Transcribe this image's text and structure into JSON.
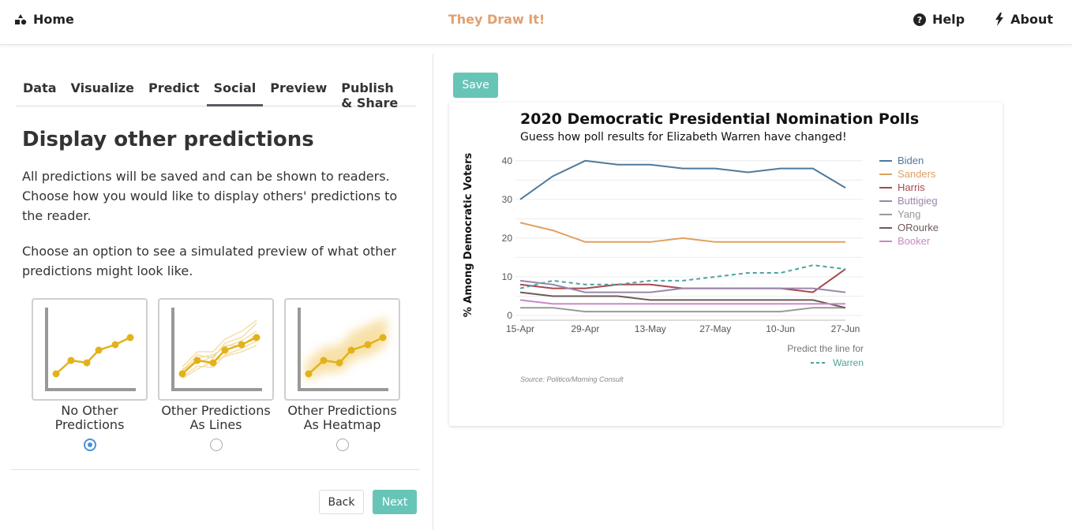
{
  "nav": {
    "home_label": "Home",
    "brand": "They Draw It!",
    "help_label": "Help",
    "about_label": "About",
    "home_icon": "shapes-icon",
    "help_icon": "question-circle-icon",
    "about_icon": "bolt-icon"
  },
  "tabs": [
    {
      "label": "Data",
      "active": false
    },
    {
      "label": "Visualize",
      "active": false
    },
    {
      "label": "Predict",
      "active": false
    },
    {
      "label": "Social",
      "active": true
    },
    {
      "label": "Preview",
      "active": false
    },
    {
      "label": "Publish & Share",
      "active": false
    }
  ],
  "section": {
    "title": "Display other predictions",
    "para1": "All predictions will be saved and can be shown to readers. Choose how you would like to display others' predictions to the reader.",
    "para2": "Choose an option to see a simulated preview of what other predictions might look like."
  },
  "options": [
    {
      "line1": "No Other",
      "line2": "Predictions",
      "selected": true
    },
    {
      "line1": "Other Predictions",
      "line2": "As Lines",
      "selected": false
    },
    {
      "line1": "Other Predictions",
      "line2": "As Heatmap",
      "selected": false
    }
  ],
  "buttons": {
    "back": "Back",
    "next": "Next",
    "save": "Save"
  },
  "colors": {
    "accent": "#67c5b8",
    "brand": "#e0a070",
    "thumb_point": "#e2b21a"
  },
  "chart_data": {
    "type": "line",
    "title": "2020 Democratic Presidential Nomination Polls",
    "subtitle": "Guess how poll results for Elizabeth Warren have changed!",
    "ylabel": "% Among Democratic Voters",
    "xlabel": "",
    "x": [
      "15-Apr",
      "22-Apr",
      "29-Apr",
      "6-May",
      "13-May",
      "20-May",
      "27-May",
      "3-Jun",
      "10-Jun",
      "17-Jun",
      "27-Jun"
    ],
    "xticks": [
      "15-Apr",
      "29-Apr",
      "13-May",
      "27-May",
      "10-Jun",
      "27-Jun"
    ],
    "yticks": [
      0,
      10,
      20,
      30,
      40
    ],
    "ylim": [
      0,
      42
    ],
    "grid": true,
    "legend_position": "right",
    "series": [
      {
        "name": "Biden",
        "color": "#4e7a9c",
        "values": [
          30,
          36,
          40,
          39,
          39,
          38,
          38,
          37,
          38,
          38,
          33
        ]
      },
      {
        "name": "Sanders",
        "color": "#e0a060",
        "values": [
          24,
          22,
          19,
          19,
          19,
          20,
          19,
          19,
          19,
          19,
          19
        ]
      },
      {
        "name": "Harris",
        "color": "#a8494f",
        "values": [
          8,
          7,
          7,
          8,
          8,
          7,
          7,
          7,
          7,
          6,
          12
        ]
      },
      {
        "name": "Buttigieg",
        "color": "#9b86ac",
        "values": [
          9,
          8,
          6,
          6,
          6,
          7,
          7,
          7,
          7,
          7,
          6
        ]
      },
      {
        "name": "Yang",
        "color": "#999999",
        "values": [
          2,
          2,
          1,
          1,
          1,
          1,
          1,
          1,
          1,
          2,
          2
        ]
      },
      {
        "name": "ORourke",
        "color": "#6f5a5a",
        "values": [
          6,
          5,
          5,
          5,
          4,
          4,
          4,
          4,
          4,
          4,
          2
        ]
      },
      {
        "name": "Booker",
        "color": "#c888c8",
        "values": [
          4,
          3,
          3,
          3,
          3,
          3,
          3,
          3,
          3,
          3,
          3
        ]
      }
    ],
    "prediction": {
      "label": "Predict the line for",
      "name": "Warren",
      "color": "#4aa3a0",
      "values": [
        7,
        9,
        8,
        8,
        9,
        9,
        10,
        11,
        11,
        13,
        12
      ]
    },
    "source": "Source: Politico/Morning Consult"
  }
}
